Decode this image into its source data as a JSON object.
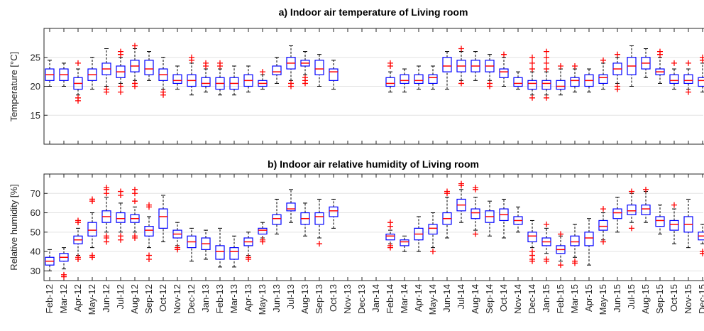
{
  "chart_data": [
    {
      "type": "box",
      "title": "a) Indoor air temperature of Living room",
      "ylabel": "Temperature [°C]",
      "ylim": [
        10,
        30
      ],
      "yticks": [
        15,
        20,
        25
      ],
      "grid": true,
      "box_color": "#0000ff",
      "median_color": "#ff0000",
      "outlier_color": "#ff0000",
      "boxes": [
        {
          "min": 20,
          "q1": 21,
          "median": 22,
          "q3": 23,
          "max": 24.5,
          "outliers": []
        },
        {
          "min": 20,
          "q1": 21,
          "median": 22,
          "q3": 23,
          "max": 24,
          "outliers": []
        },
        {
          "min": 18.5,
          "q1": 19.5,
          "median": 20.5,
          "q3": 21.5,
          "max": 23,
          "outliers": [
            18,
            17.5,
            24
          ]
        },
        {
          "min": 19.5,
          "q1": 21,
          "median": 22,
          "q3": 23,
          "max": 25,
          "outliers": []
        },
        {
          "min": 20,
          "q1": 22,
          "median": 23,
          "q3": 24,
          "max": 26.5,
          "outliers": [
            19,
            19.5
          ]
        },
        {
          "min": 20.5,
          "q1": 21.5,
          "median": 22.5,
          "q3": 23.5,
          "max": 25,
          "outliers": [
            25.5,
            26,
            19,
            20
          ]
        },
        {
          "min": 21,
          "q1": 22.5,
          "median": 23.5,
          "q3": 24.5,
          "max": 26.5,
          "outliers": [
            27,
            20.5,
            20
          ]
        },
        {
          "min": 21,
          "q1": 22,
          "median": 23,
          "q3": 24.5,
          "max": 26,
          "outliers": []
        },
        {
          "min": 19.5,
          "q1": 21,
          "median": 22,
          "q3": 23,
          "max": 25,
          "outliers": [
            19,
            18.5
          ]
        },
        {
          "min": 19.5,
          "q1": 20.5,
          "median": 21,
          "q3": 22,
          "max": 23.5,
          "outliers": []
        },
        {
          "min": 18.5,
          "q1": 20,
          "median": 21,
          "q3": 22,
          "max": 24,
          "outliers": [
            25,
            24.5
          ]
        },
        {
          "min": 19,
          "q1": 20,
          "median": 20.5,
          "q3": 21.5,
          "max": 23,
          "outliers": [
            24,
            23.5
          ]
        },
        {
          "min": 18.5,
          "q1": 19.5,
          "median": 20.5,
          "q3": 21.5,
          "max": 23,
          "outliers": [
            24,
            23.5
          ]
        },
        {
          "min": 18.5,
          "q1": 19.5,
          "median": 20.5,
          "q3": 21.5,
          "max": 23.5,
          "outliers": []
        },
        {
          "min": 19,
          "q1": 20,
          "median": 21,
          "q3": 22,
          "max": 23.5,
          "outliers": []
        },
        {
          "min": 19.5,
          "q1": 20,
          "median": 20.5,
          "q3": 21,
          "max": 22,
          "outliers": [
            22.5
          ]
        },
        {
          "min": 20.5,
          "q1": 22,
          "median": 22.5,
          "q3": 23.5,
          "max": 25,
          "outliers": []
        },
        {
          "min": 21,
          "q1": 23,
          "median": 24,
          "q3": 25,
          "max": 27,
          "outliers": [
            20.5,
            20
          ]
        },
        {
          "min": 22,
          "q1": 23.5,
          "median": 24,
          "q3": 24.5,
          "max": 26,
          "outliers": [
            21.5,
            21,
            20.5
          ]
        },
        {
          "min": 20,
          "q1": 22,
          "median": 23,
          "q3": 24.5,
          "max": 25.5,
          "outliers": []
        },
        {
          "min": 19.5,
          "q1": 21,
          "median": 22.5,
          "q3": 23,
          "max": 24.5,
          "outliers": []
        },
        null,
        null,
        null,
        {
          "min": 19,
          "q1": 20,
          "median": 20.5,
          "q3": 21.5,
          "max": 22.5,
          "outliers": [
            23.5,
            24
          ]
        },
        {
          "min": 19,
          "q1": 20.5,
          "median": 21,
          "q3": 22,
          "max": 23,
          "outliers": []
        },
        {
          "min": 19.5,
          "q1": 20.5,
          "median": 21,
          "q3": 22,
          "max": 23.5,
          "outliers": []
        },
        {
          "min": 19.5,
          "q1": 20.5,
          "median": 21.5,
          "q3": 22,
          "max": 23.5,
          "outliers": []
        },
        {
          "min": 19.5,
          "q1": 22.5,
          "median": 23.5,
          "q3": 25,
          "max": 26,
          "outliers": []
        },
        {
          "min": 21,
          "q1": 22.5,
          "median": 23.5,
          "q3": 24.5,
          "max": 26,
          "outliers": [
            26.5,
            20.5
          ]
        },
        {
          "min": 21,
          "q1": 22.5,
          "median": 23.5,
          "q3": 24.5,
          "max": 26,
          "outliers": []
        },
        {
          "min": 21,
          "q1": 22.5,
          "median": 23.5,
          "q3": 24.5,
          "max": 25.5,
          "outliers": [
            20.5,
            20
          ]
        },
        {
          "min": 20,
          "q1": 21.5,
          "median": 22.5,
          "q3": 23,
          "max": 25,
          "outliers": [
            25.5
          ]
        },
        {
          "min": 19.5,
          "q1": 20,
          "median": 20.5,
          "q3": 21.5,
          "max": 22.5,
          "outliers": []
        },
        {
          "min": 18.5,
          "q1": 19.5,
          "median": 20.5,
          "q3": 21,
          "max": 22.5,
          "outliers": [
            25,
            24,
            23,
            18
          ]
        },
        {
          "min": 18.5,
          "q1": 19.5,
          "median": 20.5,
          "q3": 21,
          "max": 22.5,
          "outliers": [
            26,
            25,
            24,
            23,
            18
          ]
        },
        {
          "min": 18.5,
          "q1": 19.5,
          "median": 20,
          "q3": 21,
          "max": 23,
          "outliers": [
            23.5
          ]
        },
        {
          "min": 19,
          "q1": 20,
          "median": 21,
          "q3": 21.5,
          "max": 23,
          "outliers": [
            23.5
          ]
        },
        {
          "min": 19,
          "q1": 20,
          "median": 21,
          "q3": 22,
          "max": 23,
          "outliers": []
        },
        {
          "min": 19.5,
          "q1": 20.5,
          "median": 21.5,
          "q3": 22,
          "max": 24,
          "outliers": [
            24.5
          ]
        },
        {
          "min": 20.5,
          "q1": 22,
          "median": 23,
          "q3": 24,
          "max": 25,
          "outliers": [
            25.5,
            20,
            19.5
          ]
        },
        {
          "min": 20,
          "q1": 22,
          "median": 23.5,
          "q3": 25,
          "max": 27,
          "outliers": []
        },
        {
          "min": 21.5,
          "q1": 23,
          "median": 24,
          "q3": 25,
          "max": 26.5,
          "outliers": []
        },
        {
          "min": 20.5,
          "q1": 22,
          "median": 22.5,
          "q3": 23,
          "max": 25,
          "outliers": [
            26,
            25.5
          ]
        },
        {
          "min": 19.5,
          "q1": 20.5,
          "median": 21,
          "q3": 22,
          "max": 23,
          "outliers": [
            24
          ]
        },
        {
          "min": 19.5,
          "q1": 20.5,
          "median": 21,
          "q3": 22,
          "max": 23,
          "outliers": [
            24,
            19
          ]
        },
        {
          "min": 19,
          "q1": 20,
          "median": 21,
          "q3": 21.5,
          "max": 24,
          "outliers": [
            25,
            24.5
          ]
        }
      ]
    },
    {
      "type": "box",
      "title": "b) Indoor air relative humidity of Living room",
      "ylabel": "Relative humidity [%]",
      "ylim": [
        25,
        80
      ],
      "yticks": [
        30,
        40,
        50,
        60,
        70
      ],
      "grid": true,
      "box_color": "#0000ff",
      "median_color": "#ff0000",
      "outlier_color": "#ff0000",
      "categories": [
        "Feb-12",
        "Mar-12",
        "Apr-12",
        "May-12",
        "Jun-12",
        "Jul-12",
        "Aug-12",
        "Sep-12",
        "Oct-12",
        "Nov-12",
        "Dec-12",
        "Jan-13",
        "Feb-13",
        "Mar-13",
        "Apr-13",
        "May-13",
        "Jun-13",
        "Jul-13",
        "Aug-13",
        "Sep-13",
        "Oct-13",
        "Nov-13",
        "Dec-13",
        "Jan-14",
        "Feb-14",
        "Mar-14",
        "Apr-14",
        "May-14",
        "Jun-14",
        "Jul-14",
        "Aug-14",
        "Sep-14",
        "Oct-14",
        "Nov-14",
        "Dec-14",
        "Jan-15",
        "Feb-15",
        "Mar-15",
        "Apr-15",
        "May-15",
        "Jun-15",
        "Jul-15",
        "Aug-15",
        "Sep-15",
        "Oct-15",
        "Nov-15",
        "Dec-15"
      ],
      "boxes": [
        {
          "min": 30,
          "q1": 33,
          "median": 35,
          "q3": 37,
          "max": 41,
          "outliers": []
        },
        {
          "min": 31,
          "q1": 35,
          "median": 37,
          "q3": 39,
          "max": 42,
          "outliers": [
            27,
            28
          ]
        },
        {
          "min": 38,
          "q1": 44,
          "median": 46,
          "q3": 48,
          "max": 52,
          "outliers": [
            55,
            56,
            37,
            36
          ]
        },
        {
          "min": 42,
          "q1": 48,
          "median": 51,
          "q3": 55,
          "max": 60,
          "outliers": [
            66,
            67,
            38,
            37
          ]
        },
        {
          "min": 50,
          "q1": 55,
          "median": 58,
          "q3": 61,
          "max": 68,
          "outliers": [
            70,
            72,
            73,
            47,
            48,
            45
          ]
        },
        {
          "min": 50,
          "q1": 55,
          "median": 57,
          "q3": 60,
          "max": 65,
          "outliers": [
            69,
            71,
            46,
            48
          ]
        },
        {
          "min": 50,
          "q1": 55,
          "median": 57,
          "q3": 59,
          "max": 63,
          "outliers": [
            66,
            70,
            72,
            47,
            48
          ]
        },
        {
          "min": 42,
          "q1": 48,
          "median": 51,
          "q3": 53,
          "max": 58,
          "outliers": [
            64,
            63,
            36,
            38
          ]
        },
        {
          "min": 45,
          "q1": 52,
          "median": 58,
          "q3": 62,
          "max": 69,
          "outliers": []
        },
        {
          "min": 43,
          "q1": 47,
          "median": 49,
          "q3": 51,
          "max": 55,
          "outliers": [
            42,
            41
          ]
        },
        {
          "min": 35,
          "q1": 42,
          "median": 45,
          "q3": 48,
          "max": 52,
          "outliers": []
        },
        {
          "min": 36,
          "q1": 41,
          "median": 44,
          "q3": 47,
          "max": 51,
          "outliers": []
        },
        {
          "min": 32,
          "q1": 36,
          "median": 40,
          "q3": 43,
          "max": 52,
          "outliers": []
        },
        {
          "min": 32,
          "q1": 36,
          "median": 40,
          "q3": 42,
          "max": 48,
          "outliers": []
        },
        {
          "min": 38,
          "q1": 43,
          "median": 45,
          "q3": 47,
          "max": 50,
          "outliers": [
            37,
            36
          ]
        },
        {
          "min": 47,
          "q1": 49,
          "median": 51,
          "q3": 52,
          "max": 55,
          "outliers": [
            45,
            46
          ]
        },
        {
          "min": 49,
          "q1": 54,
          "median": 57,
          "q3": 59,
          "max": 67,
          "outliers": []
        },
        {
          "min": 55,
          "q1": 61,
          "median": 62,
          "q3": 65,
          "max": 72,
          "outliers": []
        },
        {
          "min": 48,
          "q1": 54,
          "median": 57,
          "q3": 60,
          "max": 65,
          "outliers": []
        },
        {
          "min": 47,
          "q1": 54,
          "median": 58,
          "q3": 60,
          "max": 67,
          "outliers": [
            44
          ]
        },
        {
          "min": 52,
          "q1": 58,
          "median": 61,
          "q3": 63,
          "max": 67,
          "outliers": []
        },
        null,
        null,
        null,
        {
          "min": 44,
          "q1": 46,
          "median": 48,
          "q3": 49,
          "max": 51,
          "outliers": [
            53,
            55,
            42,
            43
          ]
        },
        {
          "min": 40,
          "q1": 43,
          "median": 45,
          "q3": 46,
          "max": 48,
          "outliers": []
        },
        {
          "min": 40,
          "q1": 46,
          "median": 49,
          "q3": 52,
          "max": 58,
          "outliers": []
        },
        {
          "min": 42,
          "q1": 49,
          "median": 52,
          "q3": 54,
          "max": 60,
          "outliers": [
            40
          ]
        },
        {
          "min": 47,
          "q1": 54,
          "median": 57,
          "q3": 60,
          "max": 68,
          "outliers": [
            70,
            71
          ]
        },
        {
          "min": 55,
          "q1": 61,
          "median": 64,
          "q3": 67,
          "max": 72,
          "outliers": [
            74,
            75
          ]
        },
        {
          "min": 51,
          "q1": 57,
          "median": 60,
          "q3": 62,
          "max": 68,
          "outliers": [
            72,
            73,
            49
          ]
        },
        {
          "min": 48,
          "q1": 55,
          "median": 58,
          "q3": 61,
          "max": 66,
          "outliers": []
        },
        {
          "min": 47,
          "q1": 56,
          "median": 59,
          "q3": 62,
          "max": 67,
          "outliers": []
        },
        {
          "min": 50,
          "q1": 54,
          "median": 56,
          "q3": 58,
          "max": 63,
          "outliers": []
        },
        {
          "min": 42,
          "q1": 45,
          "median": 48,
          "q3": 50,
          "max": 56,
          "outliers": [
            40,
            38,
            36,
            35
          ]
        },
        {
          "min": 39,
          "q1": 43,
          "median": 45,
          "q3": 47,
          "max": 52,
          "outliers": [
            36,
            35,
            54
          ]
        },
        {
          "min": 35,
          "q1": 39,
          "median": 41,
          "q3": 43,
          "max": 48,
          "outliers": [
            33,
            49
          ]
        },
        {
          "min": 37,
          "q1": 43,
          "median": 45,
          "q3": 48,
          "max": 54,
          "outliers": [
            34,
            35
          ]
        },
        {
          "min": 33,
          "q1": 43,
          "median": 47,
          "q3": 50,
          "max": 57,
          "outliers": []
        },
        {
          "min": 46,
          "q1": 51,
          "median": 53,
          "q3": 56,
          "max": 60,
          "outliers": [
            62,
            45
          ]
        },
        {
          "min": 50,
          "q1": 57,
          "median": 60,
          "q3": 62,
          "max": 68,
          "outliers": []
        },
        {
          "min": 55,
          "q1": 59,
          "median": 61,
          "q3": 64,
          "max": 70,
          "outliers": [
            52,
            71
          ]
        },
        {
          "min": 55,
          "q1": 59,
          "median": 62,
          "q3": 64,
          "max": 71,
          "outliers": [
            72
          ]
        },
        {
          "min": 49,
          "q1": 53,
          "median": 56,
          "q3": 58,
          "max": 64,
          "outliers": []
        },
        {
          "min": 44,
          "q1": 51,
          "median": 54,
          "q3": 56,
          "max": 62,
          "outliers": [
            64
          ]
        },
        {
          "min": 42,
          "q1": 50,
          "median": 54,
          "q3": 58,
          "max": 67,
          "outliers": []
        },
        {
          "min": 44,
          "q1": 46,
          "median": 48,
          "q3": 50,
          "max": 54,
          "outliers": [
            40,
            39
          ]
        }
      ]
    }
  ]
}
